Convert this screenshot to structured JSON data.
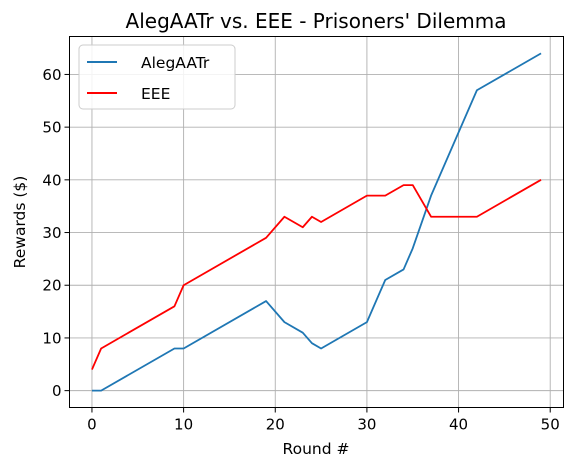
{
  "chart_data": {
    "type": "line",
    "title": "AlegAATr vs. EEE - Prisoners' Dilemma",
    "xlabel": "Round #",
    "ylabel": "Rewards ($)",
    "xlim": [
      -2.45,
      51.45
    ],
    "ylim": [
      -3.2,
      67.2
    ],
    "xticks": [
      0,
      10,
      20,
      30,
      40,
      50
    ],
    "yticks": [
      0,
      10,
      20,
      30,
      40,
      50,
      60
    ],
    "grid": true,
    "legend_position": "top-left",
    "series": [
      {
        "name": "AlegAATr",
        "color": "#1f77b4",
        "points": [
          [
            0,
            0
          ],
          [
            1,
            0
          ],
          [
            9,
            8
          ],
          [
            10,
            8
          ],
          [
            19,
            17
          ],
          [
            21,
            13
          ],
          [
            23,
            11
          ],
          [
            24,
            9
          ],
          [
            25,
            8
          ],
          [
            30,
            13
          ],
          [
            32,
            21
          ],
          [
            34,
            23
          ],
          [
            35,
            27
          ],
          [
            37,
            37
          ],
          [
            42,
            57
          ],
          [
            49,
            64
          ]
        ]
      },
      {
        "name": "EEE",
        "color": "#ff0000",
        "points": [
          [
            0,
            4
          ],
          [
            1,
            8
          ],
          [
            9,
            16
          ],
          [
            10,
            20
          ],
          [
            19,
            29
          ],
          [
            21,
            33
          ],
          [
            23,
            31
          ],
          [
            24,
            33
          ],
          [
            25,
            32
          ],
          [
            30,
            37
          ],
          [
            32,
            37
          ],
          [
            34,
            39
          ],
          [
            35,
            39
          ],
          [
            37,
            33
          ],
          [
            42,
            33
          ],
          [
            49,
            40
          ]
        ]
      }
    ]
  }
}
